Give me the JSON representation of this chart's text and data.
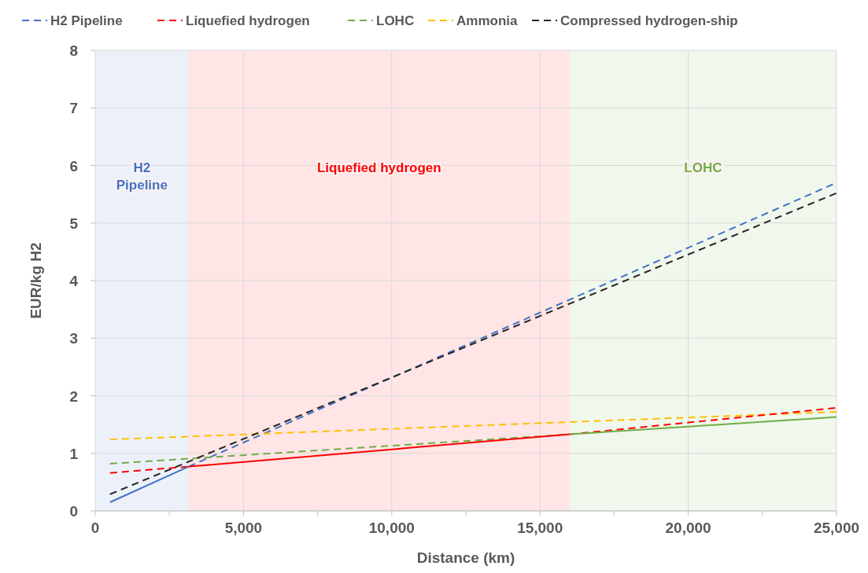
{
  "chart_data": {
    "type": "line",
    "xlabel": "Distance (km)",
    "ylabel": "EUR/kg H2",
    "xlim": [
      0,
      25000
    ],
    "ylim": [
      0,
      8
    ],
    "xticks": [
      0,
      {
        "value": 2500,
        "label": null
      },
      {
        "value": 5000,
        "label": "5,000"
      },
      {
        "value": 7500,
        "label": null
      },
      {
        "value": 10000,
        "label": "10,000"
      },
      {
        "value": 12500,
        "label": null
      },
      {
        "value": 15000,
        "label": "15,000"
      },
      {
        "value": 17500,
        "label": null
      },
      {
        "value": 20000,
        "label": "20,000"
      },
      {
        "value": 22500,
        "label": null
      },
      {
        "value": 25000,
        "label": "25,000"
      }
    ],
    "yticks": [
      0,
      1,
      2,
      3,
      4,
      5,
      6,
      7,
      8
    ],
    "grid": true,
    "legend": "top",
    "bands": [
      {
        "axis": "x",
        "from": 0,
        "to": 3150,
        "label": "H2\nPipeline",
        "color": "#4472c4"
      },
      {
        "axis": "x",
        "from": 3150,
        "to": 16000,
        "label": "Liquefied hydrogen",
        "color": "#ff0000"
      },
      {
        "axis": "x",
        "from": 16000,
        "to": 25000,
        "label": "LOHC",
        "color": "#70ad47"
      }
    ],
    "series": [
      {
        "name": "H2 Pipeline",
        "color": "#4472c4",
        "line_style": "dashed",
        "x": [
          3150,
          25000
        ],
        "values": [
          0.77,
          5.7
        ]
      },
      {
        "name": "Liquefied hydrogen",
        "color": "#ff0000",
        "line_style": "dashed",
        "x": [
          500,
          3150
        ],
        "values": [
          0.66,
          0.77
        ]
      },
      {
        "name": "LOHC",
        "color": "#70ad47",
        "line_style": "dashed",
        "x": [
          500,
          16000
        ],
        "values": [
          0.82,
          1.33
        ]
      },
      {
        "name": "Ammonia",
        "color": "#ffc000",
        "line_style": "dashed",
        "x": [
          500,
          25000
        ],
        "values": [
          1.24,
          1.72
        ]
      },
      {
        "name": "Compressed hydrogen-ship",
        "color": "#262626",
        "line_style": "dashed",
        "x": [
          500,
          25000
        ],
        "values": [
          0.29,
          5.52
        ]
      },
      {
        "color": "#4472c4",
        "line_style": "solid",
        "x": [
          500,
          3150
        ],
        "values": [
          0.15,
          0.77
        ]
      },
      {
        "color": "#ff0000",
        "line_style": "solid",
        "x": [
          3150,
          16000
        ],
        "values": [
          0.77,
          1.33
        ]
      },
      {
        "color": "#ff0000",
        "line_style": "dashed",
        "x": [
          16000,
          25000
        ],
        "values": [
          1.33,
          1.79
        ]
      },
      {
        "color": "#70ad47",
        "line_style": "solid",
        "x": [
          16000,
          25000
        ],
        "values": [
          1.33,
          1.63
        ]
      }
    ]
  }
}
